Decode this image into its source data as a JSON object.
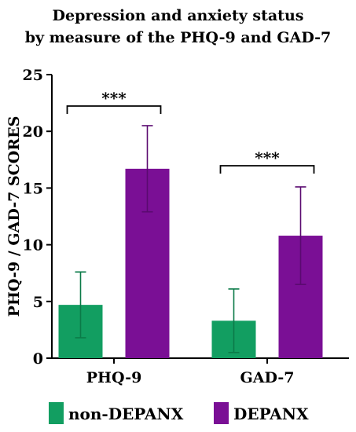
{
  "title_lines": [
    "Depression and anxiety status",
    "by measure of the PHQ-9 and GAD-7"
  ],
  "chart_data": {
    "type": "bar",
    "title": "Depression and anxiety status by measure of the PHQ-9 and GAD-7",
    "xlabel": "",
    "ylabel": "PHQ-9 / GAD-7 SCORES",
    "categories": [
      "PHQ-9",
      "GAD-7"
    ],
    "ylim": [
      0,
      25
    ],
    "yticks": [
      0,
      5,
      10,
      15,
      20,
      25
    ],
    "series": [
      {
        "name": "non-DEPANX",
        "color": "#129e61",
        "values": [
          4.7,
          3.3
        ],
        "error": [
          2.9,
          2.8
        ]
      },
      {
        "name": "DEPANX",
        "color": "#7a0f95",
        "values": [
          16.7,
          10.8
        ],
        "error": [
          3.8,
          4.3
        ]
      }
    ],
    "significance": [
      {
        "category": "PHQ-9",
        "label": "***"
      },
      {
        "category": "GAD-7",
        "label": "***"
      }
    ],
    "legend_position": "bottom",
    "grid": false
  }
}
